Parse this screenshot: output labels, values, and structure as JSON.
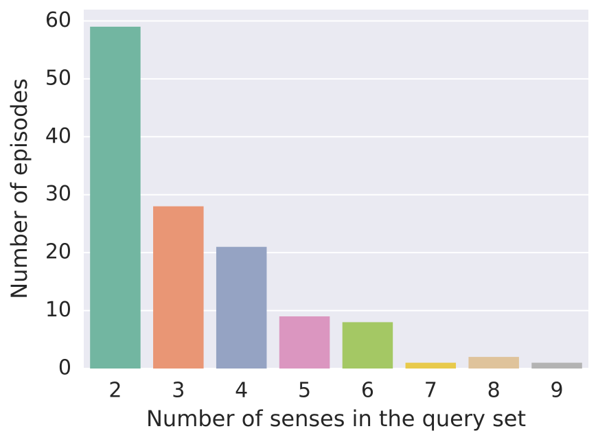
{
  "chart_data": {
    "type": "bar",
    "xlabel": "Number of senses in the query set",
    "ylabel": "Number of episodes",
    "categories": [
      "2",
      "3",
      "4",
      "5",
      "6",
      "7",
      "8",
      "9"
    ],
    "values": [
      59,
      28,
      21,
      9,
      8,
      1,
      2,
      1
    ],
    "colors": [
      "#72b6a1",
      "#e99675",
      "#95a3c3",
      "#db96c0",
      "#a4c864",
      "#e8ca4b",
      "#dfc39b",
      "#b3b3b3"
    ],
    "ylim": [
      0,
      61.95
    ],
    "yticks": [
      0,
      10,
      20,
      30,
      40,
      50,
      60
    ],
    "grid": true
  }
}
